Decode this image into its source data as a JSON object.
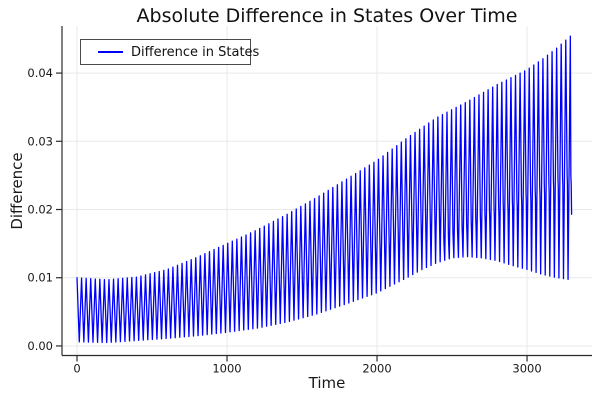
{
  "colors": {
    "line": "#0000FF",
    "grid": "#E9E9E9",
    "axis": "#2B2B2B",
    "text": "#191919",
    "legend_border": "#4A4A4A",
    "background": "#FFFFFF"
  },
  "chart_data": {
    "type": "line",
    "title": "Absolute Difference in States Over Time",
    "xlabel": "Time",
    "ylabel": "Difference",
    "xlim": [
      -100,
      3433
    ],
    "ylim": [
      -0.0014,
      0.0469
    ],
    "xticks": {
      "values": [
        0,
        1000,
        2000,
        3000
      ],
      "labels": [
        "0",
        "1000",
        "2000",
        "3000"
      ]
    },
    "yticks": {
      "values": [
        0,
        0.01,
        0.02,
        0.03,
        0.04
      ],
      "labels": [
        "0.00",
        "0.01",
        "0.02",
        "0.03",
        "0.04"
      ]
    },
    "grid": true,
    "legend_position": "top-left",
    "series": [
      {
        "name": "Difference in States",
        "color": "#0000FF",
        "description": "absolute difference signal oscillating between lower and upper envelopes, about 108 cycles from t=0 to t=3300"
      }
    ],
    "oscillation": {
      "period": 30.45,
      "t_start": 0,
      "t_last_peak": 3289,
      "kink_start_t": 2430,
      "tail_points": [
        [
          3292,
          0.025
        ],
        [
          3294.5,
          0.0236
        ],
        [
          3297,
          0.0193
        ]
      ]
    },
    "envelope_upper": [
      [
        0,
        0.01
      ],
      [
        200,
        0.0097
      ],
      [
        400,
        0.0101
      ],
      [
        600,
        0.0112
      ],
      [
        800,
        0.013
      ],
      [
        1000,
        0.015
      ],
      [
        1200,
        0.017
      ],
      [
        1400,
        0.0193
      ],
      [
        1600,
        0.0218
      ],
      [
        1800,
        0.0245
      ],
      [
        2000,
        0.0272
      ],
      [
        2200,
        0.0305
      ],
      [
        2400,
        0.0335
      ],
      [
        2600,
        0.0358
      ],
      [
        2800,
        0.0383
      ],
      [
        3000,
        0.0405
      ],
      [
        3100,
        0.042
      ],
      [
        3200,
        0.0437
      ],
      [
        3293,
        0.0455
      ]
    ],
    "envelope_lower": [
      [
        0,
        0.0006
      ],
      [
        200,
        0.0005
      ],
      [
        400,
        0.0008
      ],
      [
        600,
        0.0011
      ],
      [
        800,
        0.0015
      ],
      [
        1000,
        0.002
      ],
      [
        1200,
        0.0026
      ],
      [
        1400,
        0.0035
      ],
      [
        1600,
        0.0047
      ],
      [
        1800,
        0.0062
      ],
      [
        2000,
        0.0078
      ],
      [
        2200,
        0.01
      ],
      [
        2300,
        0.0112
      ],
      [
        2400,
        0.0122
      ],
      [
        2500,
        0.0129
      ],
      [
        2600,
        0.0131
      ],
      [
        2700,
        0.0129
      ],
      [
        2800,
        0.0125
      ],
      [
        2900,
        0.0118
      ],
      [
        3000,
        0.0112
      ],
      [
        3100,
        0.0105
      ],
      [
        3200,
        0.01
      ],
      [
        3293,
        0.0097
      ]
    ],
    "kink_mid": [
      [
        2430,
        0.0158
      ],
      [
        2600,
        0.018
      ],
      [
        2800,
        0.0205
      ],
      [
        3000,
        0.0225
      ],
      [
        3150,
        0.024
      ],
      [
        3293,
        0.0252
      ]
    ]
  }
}
